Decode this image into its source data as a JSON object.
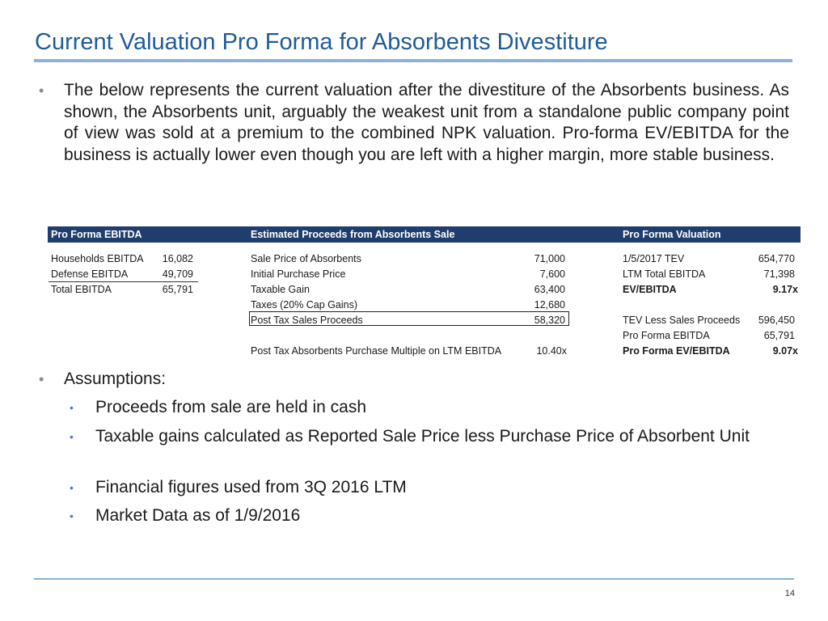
{
  "title": "Current Valuation Pro Forma for Absorbents Divestiture",
  "intro_bullet": "The below represents the current valuation after the divestiture of the Absorbents business.  As shown, the Absorbents unit, arguably the weakest unit from a standalone public company point of view was sold at a premium to the combined NPK valuation.  Pro-forma EV/EBITDA for the business is actually lower even though you are left with a higher margin, more stable business.",
  "table": {
    "headers": {
      "pro_forma_ebitda": "Pro Forma EBITDA",
      "estimated_proceeds": "Estimated Proceeds from Absorbents Sale",
      "pro_forma_valuation": "Pro Forma Valuation"
    },
    "ebitda": [
      {
        "label": "Households EBITDA",
        "value": "16,082"
      },
      {
        "label": "Defense EBITDA",
        "value": "49,709"
      },
      {
        "label": "Total EBITDA",
        "value": "65,791"
      }
    ],
    "proceeds": [
      {
        "label": "Sale Price of Absorbents",
        "value": "71,000"
      },
      {
        "label": "Initial Purchase Price",
        "value": "7,600"
      },
      {
        "label": "Taxable Gain",
        "value": "63,400"
      },
      {
        "label": "Taxes (20% Cap Gains)",
        "value": "12,680"
      },
      {
        "label": "Post Tax Sales Proceeds",
        "value": "58,320"
      },
      {
        "label": "Post Tax Absorbents Purchase Multiple on LTM EBITDA",
        "value": "10.40x"
      }
    ],
    "valuation": [
      {
        "label": "1/5/2017 TEV",
        "value": "654,770"
      },
      {
        "label": "LTM Total EBITDA",
        "value": "71,398"
      },
      {
        "label": "EV/EBITDA",
        "value": "9.17x"
      },
      {
        "label": "TEV Less Sales Proceeds",
        "value": "596,450"
      },
      {
        "label": "Pro Forma EBITDA",
        "value": "65,791"
      },
      {
        "label": "Pro Forma EV/EBITDA",
        "value": "9.07x"
      }
    ]
  },
  "assumptions": {
    "heading": "Assumptions:",
    "items": [
      "Proceeds from sale are held in cash",
      "Taxable gains calculated as Reported Sale Price less Purchase Price of Absorbent Unit",
      "Financial figures used from 3Q 2016 LTM",
      "Market Data as of 1/9/2016"
    ]
  },
  "page_number": "14",
  "colors": {
    "title": "#1f5c99",
    "header_band": "#1f3e6d",
    "title_rule": "#8fb0d8",
    "footer_rule": "#7fb3d9"
  }
}
